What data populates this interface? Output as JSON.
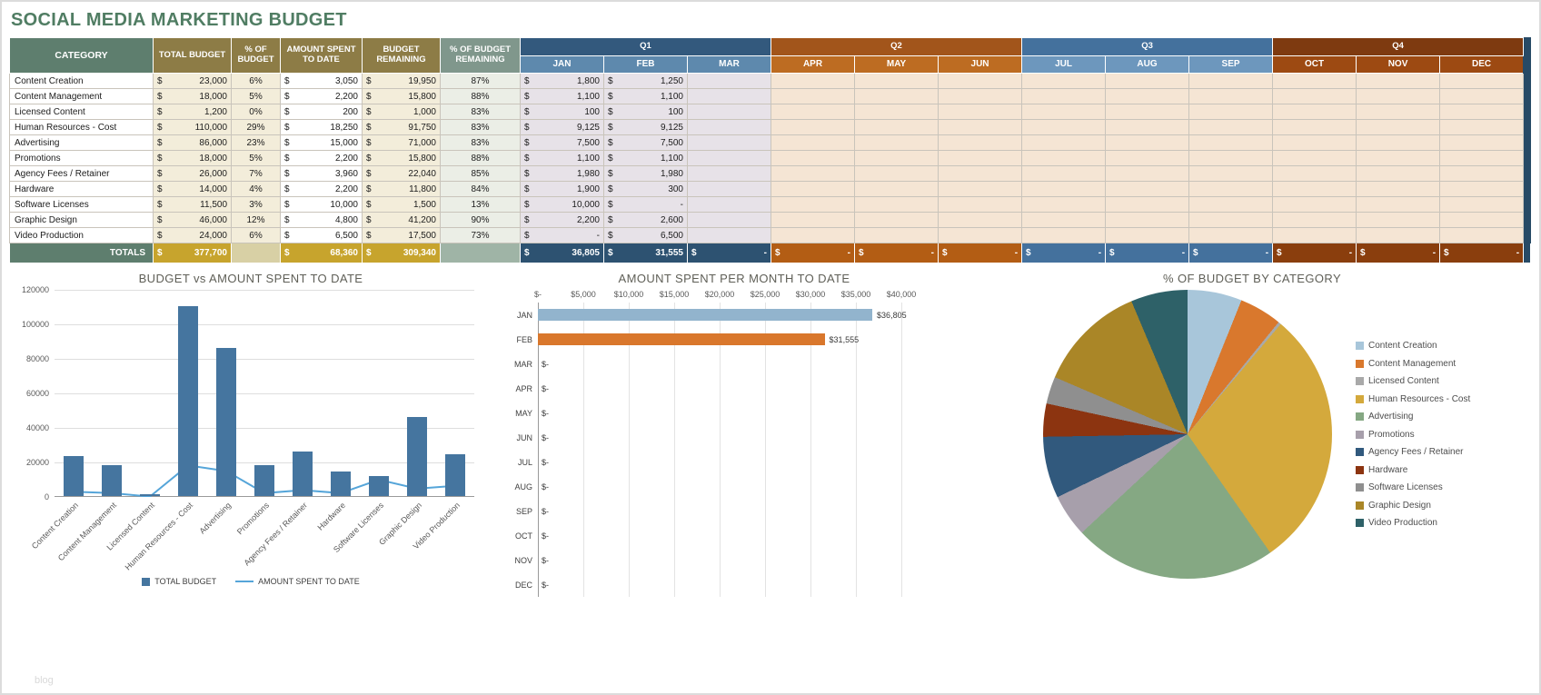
{
  "title": "SOCIAL MEDIA MARKETING BUDGET",
  "watermark": "blog",
  "table": {
    "column_headers": [
      "CATEGORY",
      "TOTAL BUDGET",
      "% OF BUDGET",
      "AMOUNT SPENT TO DATE",
      "BUDGET REMAINING",
      "% OF BUDGET REMAINING"
    ],
    "quarters": [
      {
        "label": "Q1",
        "months": [
          "JAN",
          "FEB",
          "MAR"
        ]
      },
      {
        "label": "Q2",
        "months": [
          "APR",
          "MAY",
          "JUN"
        ]
      },
      {
        "label": "Q3",
        "months": [
          "JUL",
          "AUG",
          "SEP"
        ]
      },
      {
        "label": "Q4",
        "months": [
          "OCT",
          "NOV",
          "DEC"
        ]
      }
    ],
    "rows": [
      {
        "category": "Content Creation",
        "total_budget": "23,000",
        "pct_of_budget": "6%",
        "amount_spent": "3,050",
        "budget_remaining": "19,950",
        "pct_remaining": "87%",
        "months": [
          "1,800",
          "1,250",
          "",
          "",
          "",
          "",
          "",
          "",
          "",
          "",
          "",
          ""
        ]
      },
      {
        "category": "Content Management",
        "total_budget": "18,000",
        "pct_of_budget": "5%",
        "amount_spent": "2,200",
        "budget_remaining": "15,800",
        "pct_remaining": "88%",
        "months": [
          "1,100",
          "1,100",
          "",
          "",
          "",
          "",
          "",
          "",
          "",
          "",
          "",
          ""
        ]
      },
      {
        "category": "Licensed Content",
        "total_budget": "1,200",
        "pct_of_budget": "0%",
        "amount_spent": "200",
        "budget_remaining": "1,000",
        "pct_remaining": "83%",
        "months": [
          "100",
          "100",
          "",
          "",
          "",
          "",
          "",
          "",
          "",
          "",
          "",
          ""
        ]
      },
      {
        "category": "Human Resources - Cost",
        "total_budget": "110,000",
        "pct_of_budget": "29%",
        "amount_spent": "18,250",
        "budget_remaining": "91,750",
        "pct_remaining": "83%",
        "months": [
          "9,125",
          "9,125",
          "",
          "",
          "",
          "",
          "",
          "",
          "",
          "",
          "",
          ""
        ]
      },
      {
        "category": "Advertising",
        "total_budget": "86,000",
        "pct_of_budget": "23%",
        "amount_spent": "15,000",
        "budget_remaining": "71,000",
        "pct_remaining": "83%",
        "months": [
          "7,500",
          "7,500",
          "",
          "",
          "",
          "",
          "",
          "",
          "",
          "",
          "",
          ""
        ]
      },
      {
        "category": "Promotions",
        "total_budget": "18,000",
        "pct_of_budget": "5%",
        "amount_spent": "2,200",
        "budget_remaining": "15,800",
        "pct_remaining": "88%",
        "months": [
          "1,100",
          "1,100",
          "",
          "",
          "",
          "",
          "",
          "",
          "",
          "",
          "",
          ""
        ]
      },
      {
        "category": "Agency Fees / Retainer",
        "total_budget": "26,000",
        "pct_of_budget": "7%",
        "amount_spent": "3,960",
        "budget_remaining": "22,040",
        "pct_remaining": "85%",
        "months": [
          "1,980",
          "1,980",
          "",
          "",
          "",
          "",
          "",
          "",
          "",
          "",
          "",
          ""
        ]
      },
      {
        "category": "Hardware",
        "total_budget": "14,000",
        "pct_of_budget": "4%",
        "amount_spent": "2,200",
        "budget_remaining": "11,800",
        "pct_remaining": "84%",
        "months": [
          "1,900",
          "300",
          "",
          "",
          "",
          "",
          "",
          "",
          "",
          "",
          "",
          ""
        ]
      },
      {
        "category": "Software Licenses",
        "total_budget": "11,500",
        "pct_of_budget": "3%",
        "amount_spent": "10,000",
        "budget_remaining": "1,500",
        "pct_remaining": "13%",
        "months": [
          "10,000",
          "-",
          "",
          "",
          "",
          "",
          "",
          "",
          "",
          "",
          "",
          ""
        ]
      },
      {
        "category": "Graphic Design",
        "total_budget": "46,000",
        "pct_of_budget": "12%",
        "amount_spent": "4,800",
        "budget_remaining": "41,200",
        "pct_remaining": "90%",
        "months": [
          "2,200",
          "2,600",
          "",
          "",
          "",
          "",
          "",
          "",
          "",
          "",
          "",
          ""
        ]
      },
      {
        "category": "Video Production",
        "total_budget": "24,000",
        "pct_of_budget": "6%",
        "amount_spent": "6,500",
        "budget_remaining": "17,500",
        "pct_remaining": "73%",
        "months": [
          "-",
          "6,500",
          "",
          "",
          "",
          "",
          "",
          "",
          "",
          "",
          "",
          ""
        ]
      }
    ],
    "totals": {
      "label": "TOTALS",
      "total_budget": "377,700",
      "pct_of_budget": "",
      "amount_spent": "68,360",
      "budget_remaining": "309,340",
      "pct_remaining": "",
      "months": [
        "36,805",
        "31,555",
        "-",
        "-",
        "-",
        "-",
        "-",
        "-",
        "-",
        "-",
        "-",
        "-"
      ]
    }
  },
  "chart_data": [
    {
      "type": "bar",
      "title": "BUDGET vs AMOUNT SPENT TO DATE",
      "categories": [
        "Content Creation",
        "Content Management",
        "Licensed Content",
        "Human Resources - Cost",
        "Advertising",
        "Promotions",
        "Agency Fees / Retainer",
        "Hardware",
        "Software Licenses",
        "Graphic Design",
        "Video Production"
      ],
      "series": [
        {
          "name": "TOTAL BUDGET",
          "type": "bar",
          "values": [
            23000,
            18000,
            1200,
            110000,
            86000,
            18000,
            26000,
            14000,
            11500,
            46000,
            24000
          ]
        },
        {
          "name": "AMOUNT SPENT TO DATE",
          "type": "line",
          "values": [
            3050,
            2200,
            200,
            18250,
            15000,
            2200,
            3960,
            2200,
            10000,
            4800,
            6500
          ]
        }
      ],
      "ylim": [
        0,
        120000
      ],
      "yticks": [
        0,
        20000,
        40000,
        60000,
        80000,
        100000,
        120000
      ],
      "grid": true,
      "legend_position": "bottom"
    },
    {
      "type": "bar",
      "orientation": "horizontal",
      "title": "AMOUNT SPENT PER MONTH TO DATE",
      "categories": [
        "JAN",
        "FEB",
        "MAR",
        "APR",
        "MAY",
        "JUN",
        "JUL",
        "AUG",
        "SEP",
        "OCT",
        "NOV",
        "DEC"
      ],
      "values": [
        36805,
        31555,
        0,
        0,
        0,
        0,
        0,
        0,
        0,
        0,
        0,
        0
      ],
      "value_labels": [
        "$36,805",
        "$31,555",
        "$-",
        "$-",
        "$-",
        "$-",
        "$-",
        "$-",
        "$-",
        "$-",
        "$-",
        "$-"
      ],
      "xlim": [
        0,
        40000
      ],
      "xtick_labels": [
        "$-",
        "$5,000",
        "$10,000",
        "$15,000",
        "$20,000",
        "$25,000",
        "$30,000",
        "$35,000",
        "$40,000"
      ],
      "axis_position": "top",
      "grid": true
    },
    {
      "type": "pie",
      "title": "% OF BUDGET BY CATEGORY",
      "categories": [
        "Content Creation",
        "Content Management",
        "Licensed Content",
        "Human Resources - Cost",
        "Advertising",
        "Promotions",
        "Agency Fees / Retainer",
        "Hardware",
        "Software Licenses",
        "Graphic Design",
        "Video Production"
      ],
      "values": [
        23000,
        18000,
        1200,
        110000,
        86000,
        18000,
        26000,
        14000,
        11500,
        46000,
        24000
      ],
      "legend_position": "right"
    }
  ],
  "colors": {
    "title_green": "#507d63",
    "header_green": "#5e7e6e",
    "header_olive": "#8d7c46",
    "header_gray_green": "#80978c",
    "q1_dark": "#33597d",
    "q1_month": "#5e89ad",
    "q1_cell": "#e7e2e8",
    "q1_total": "#2d5271",
    "q2_dark": "#a2551b",
    "q2_month": "#bd6c22",
    "q2_cell": "#f5e5d4",
    "q2_total": "#b35d14",
    "q3_dark": "#44719d",
    "q3_month": "#6d97bd",
    "q3_cell": "#f5e5d4",
    "q3_total": "#44719d",
    "q4_dark": "#7e3a10",
    "q4_month": "#9d4a12",
    "q4_cell": "#f5e5d4",
    "q4_total": "#8a3e0d",
    "totals_gold": "#c7a42d",
    "cream_cell": "#f3edda",
    "bar_blue": "#45759f",
    "line_blue": "#55a5d9",
    "jan_bar": "#92b4cd",
    "feb_bar": "#d9772c",
    "pie_palette": [
      "#a8c6da",
      "#d9782d",
      "#a9a9a9",
      "#d4a93c",
      "#85a883",
      "#a79fab",
      "#31597d",
      "#8c3410",
      "#8f8f8f",
      "#aa8627",
      "#2e6168"
    ]
  }
}
